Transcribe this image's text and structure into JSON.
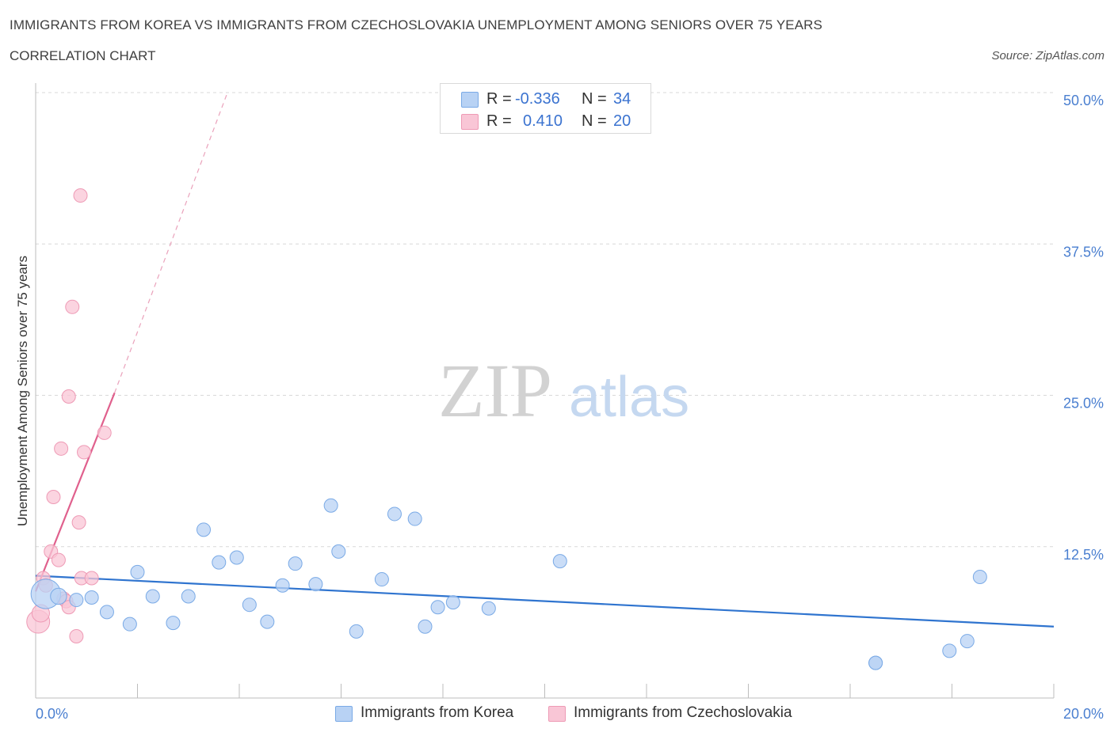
{
  "title": "IMMIGRANTS FROM KOREA VS IMMIGRANTS FROM CZECHOSLOVAKIA UNEMPLOYMENT AMONG SENIORS OVER 75 YEARS",
  "subtitle": "CORRELATION CHART",
  "source": "Source: ZipAtlas.com",
  "watermark": {
    "zip": "ZIP",
    "atlas": "atlas"
  },
  "legend": {
    "r_label": "R =",
    "n_label": "N =",
    "korea": {
      "r": "-0.336",
      "n": "34"
    },
    "czech": {
      "r": "0.410",
      "n": "20"
    }
  },
  "colors": {
    "korea_fill": "#b8d2f4",
    "korea_stroke": "#7aaae6",
    "korea_line": "#2f74cf",
    "czech_fill": "#f9c6d6",
    "czech_stroke": "#ee9ab5",
    "czech_line": "#e0608d",
    "grid": "#d8d8d8",
    "tick_label": "#4a7fd0"
  },
  "chart_data": {
    "type": "scatter",
    "title": "IMMIGRANTS FROM KOREA VS IMMIGRANTS FROM CZECHOSLOVAKIA UNEMPLOYMENT AMONG SENIORS OVER 75 YEARS",
    "subtitle": "CORRELATION CHART",
    "xlabel": "",
    "ylabel": "Unemployment Among Seniors over 75 years",
    "xlim": [
      0,
      20
    ],
    "ylim": [
      0,
      50
    ],
    "x_tick_labels": [
      "0.0%",
      "20.0%"
    ],
    "y_ticks": [
      12.5,
      25.0,
      37.5,
      50.0
    ],
    "y_tick_labels": [
      "12.5%",
      "25.0%",
      "37.5%",
      "50.0%"
    ],
    "grid": true,
    "legend_position": "top-center",
    "series": [
      {
        "name": "Immigrants from Korea",
        "color": "#b8d2f4",
        "r": -0.336,
        "n": 34,
        "points": [
          {
            "x": 0.2,
            "y": 8.6,
            "size": 2.2
          },
          {
            "x": 0.45,
            "y": 8.4,
            "size": 1.2
          },
          {
            "x": 0.8,
            "y": 8.1,
            "size": 1.0
          },
          {
            "x": 1.1,
            "y": 8.3,
            "size": 1.0
          },
          {
            "x": 1.4,
            "y": 7.1,
            "size": 1.0
          },
          {
            "x": 1.85,
            "y": 6.1,
            "size": 1.0
          },
          {
            "x": 2.0,
            "y": 10.4,
            "size": 1.0
          },
          {
            "x": 2.3,
            "y": 8.4,
            "size": 1.0
          },
          {
            "x": 2.7,
            "y": 6.2,
            "size": 1.0
          },
          {
            "x": 3.0,
            "y": 8.4,
            "size": 1.0
          },
          {
            "x": 3.3,
            "y": 13.9,
            "size": 1.0
          },
          {
            "x": 3.6,
            "y": 11.2,
            "size": 1.0
          },
          {
            "x": 3.95,
            "y": 11.6,
            "size": 1.0
          },
          {
            "x": 4.2,
            "y": 7.7,
            "size": 1.0
          },
          {
            "x": 4.55,
            "y": 6.3,
            "size": 1.0
          },
          {
            "x": 4.85,
            "y": 9.3,
            "size": 1.0
          },
          {
            "x": 5.1,
            "y": 11.1,
            "size": 1.0
          },
          {
            "x": 5.5,
            "y": 9.4,
            "size": 1.0
          },
          {
            "x": 5.8,
            "y": 15.9,
            "size": 1.0
          },
          {
            "x": 5.95,
            "y": 12.1,
            "size": 1.0
          },
          {
            "x": 6.3,
            "y": 5.5,
            "size": 1.0
          },
          {
            "x": 6.8,
            "y": 9.8,
            "size": 1.0
          },
          {
            "x": 7.05,
            "y": 15.2,
            "size": 1.0
          },
          {
            "x": 7.45,
            "y": 14.8,
            "size": 1.0
          },
          {
            "x": 7.65,
            "y": 5.9,
            "size": 1.0
          },
          {
            "x": 7.9,
            "y": 7.5,
            "size": 1.0
          },
          {
            "x": 8.2,
            "y": 7.9,
            "size": 1.0
          },
          {
            "x": 8.9,
            "y": 7.4,
            "size": 1.0
          },
          {
            "x": 10.3,
            "y": 11.3,
            "size": 1.0
          },
          {
            "x": 16.5,
            "y": 2.9,
            "size": 1.0
          },
          {
            "x": 16.5,
            "y": 2.9,
            "size": 1.0
          },
          {
            "x": 17.95,
            "y": 3.9,
            "size": 1.0
          },
          {
            "x": 18.3,
            "y": 4.7,
            "size": 1.0
          },
          {
            "x": 18.55,
            "y": 10.0,
            "size": 1.0
          }
        ],
        "trendline": {
          "x": [
            0,
            20
          ],
          "y": [
            10.1,
            5.9
          ]
        }
      },
      {
        "name": "Immigrants from Czechoslovakia",
        "color": "#f9c6d6",
        "r": 0.41,
        "n": 20,
        "points": [
          {
            "x": 0.05,
            "y": 6.3,
            "size": 1.7
          },
          {
            "x": 0.1,
            "y": 7.0,
            "size": 1.3
          },
          {
            "x": 0.15,
            "y": 9.9,
            "size": 1.0
          },
          {
            "x": 0.2,
            "y": 9.3,
            "size": 1.0
          },
          {
            "x": 0.3,
            "y": 12.1,
            "size": 1.0
          },
          {
            "x": 0.35,
            "y": 16.6,
            "size": 1.0
          },
          {
            "x": 0.45,
            "y": 11.4,
            "size": 1.0
          },
          {
            "x": 0.5,
            "y": 20.6,
            "size": 1.0
          },
          {
            "x": 0.55,
            "y": 8.2,
            "size": 1.0
          },
          {
            "x": 0.6,
            "y": 8.0,
            "size": 1.0
          },
          {
            "x": 0.65,
            "y": 7.5,
            "size": 1.0
          },
          {
            "x": 0.65,
            "y": 24.9,
            "size": 1.0
          },
          {
            "x": 0.72,
            "y": 32.3,
            "size": 1.0
          },
          {
            "x": 0.8,
            "y": 5.1,
            "size": 1.0
          },
          {
            "x": 0.85,
            "y": 14.5,
            "size": 1.0
          },
          {
            "x": 0.88,
            "y": 41.5,
            "size": 1.0
          },
          {
            "x": 0.9,
            "y": 9.9,
            "size": 1.0
          },
          {
            "x": 0.95,
            "y": 20.3,
            "size": 1.0
          },
          {
            "x": 1.1,
            "y": 9.9,
            "size": 1.0
          },
          {
            "x": 1.35,
            "y": 21.9,
            "size": 1.0
          }
        ],
        "trendline": {
          "x": [
            0,
            1.55
          ],
          "y": [
            8.8,
            25.2
          ],
          "dashed_extension": {
            "x": [
              1.55,
              3.75
            ],
            "y": [
              25.2,
              49.8
            ]
          }
        }
      }
    ]
  }
}
